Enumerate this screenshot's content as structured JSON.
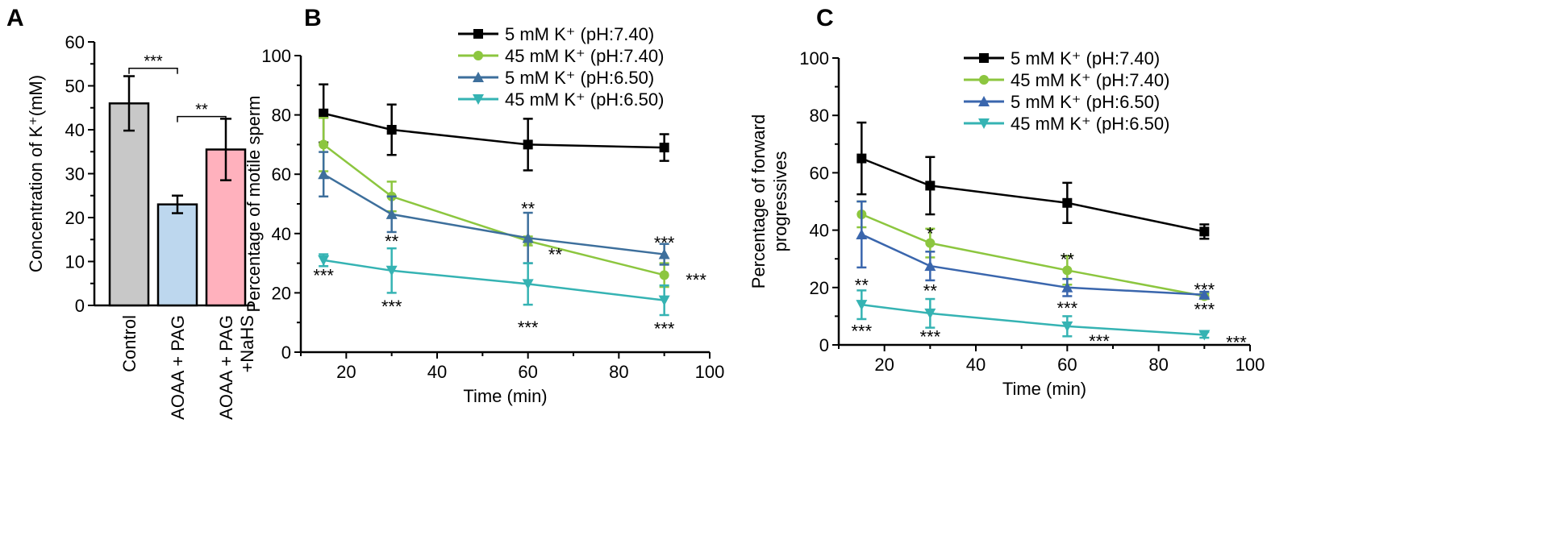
{
  "chart_data": [
    {
      "panel": "A",
      "type": "bar",
      "ylabel": "Concentration of K⁺(mM)",
      "ylim": [
        0,
        60
      ],
      "yticks": [
        0,
        10,
        20,
        30,
        40,
        50,
        60
      ],
      "categories": [
        [
          "Control"
        ],
        [
          "AOAA + PAG"
        ],
        [
          "AOAA + PAG",
          "+NaHS"
        ]
      ],
      "values": [
        46,
        23,
        35.5
      ],
      "errors": [
        6.2,
        2,
        7
      ],
      "colors": [
        "#c8c8c8",
        "#bdd7ee",
        "#ffb1bd"
      ],
      "significance": [
        {
          "from": 0,
          "to": 1,
          "label": "***",
          "y": 54
        },
        {
          "from": 1,
          "to": 2,
          "label": "**",
          "y": 43
        }
      ]
    },
    {
      "panel": "B",
      "type": "line",
      "xlabel": "Time (min)",
      "ylabel": "Percentage of motile sperm",
      "xlim": [
        10,
        100
      ],
      "xticks": [
        20,
        40,
        60,
        80,
        100
      ],
      "ylim": [
        0,
        100
      ],
      "yticks": [
        0,
        20,
        40,
        60,
        80,
        100
      ],
      "x": [
        15,
        30,
        60,
        90
      ],
      "legend_position": "top-right",
      "series": [
        {
          "name": "5 mM K⁺ (pH:7.40)",
          "color": "#000000",
          "marker": "square",
          "values": [
            80.5,
            75,
            70,
            69
          ],
          "errors": [
            9.8,
            8.5,
            8.7,
            4.5
          ]
        },
        {
          "name": "45 mM K⁺ (pH:7.40)",
          "color": "#8cc63f",
          "marker": "circle",
          "values": [
            70,
            52.5,
            37.5,
            26
          ],
          "errors": [
            9,
            5,
            1.5,
            4
          ]
        },
        {
          "name": "5 mM K⁺ (pH:6.50)",
          "color": "#3d6f9c",
          "marker": "triangle-up",
          "values": [
            60,
            46.5,
            38.5,
            33
          ],
          "errors": [
            7.5,
            6,
            8.5,
            3.5
          ]
        },
        {
          "name": "45 mM K⁺ (pH:6.50)",
          "color": "#35b3b3",
          "marker": "triangle-down",
          "values": [
            31,
            27.5,
            23,
            17.5
          ],
          "errors": [
            2,
            7.5,
            7,
            5
          ]
        }
      ],
      "annotations": [
        {
          "x": 15,
          "y": 26.5,
          "label": "***"
        },
        {
          "x": 30,
          "y": 38,
          "label": "**"
        },
        {
          "x": 30,
          "y": 16,
          "label": "***"
        },
        {
          "x": 60,
          "y": 49,
          "label": "**"
        },
        {
          "x": 66,
          "y": 33.5,
          "label": "**"
        },
        {
          "x": 60,
          "y": 9,
          "label": "***"
        },
        {
          "x": 90,
          "y": 37.5,
          "label": "***"
        },
        {
          "x": 97,
          "y": 25,
          "label": "***"
        },
        {
          "x": 90,
          "y": 8.5,
          "label": "***"
        }
      ]
    },
    {
      "panel": "C",
      "type": "line",
      "xlabel": "Time (min)",
      "ylabel": [
        "Percentage of forward",
        "progressives"
      ],
      "xlim": [
        10,
        100
      ],
      "xticks": [
        20,
        40,
        60,
        80,
        100
      ],
      "ylim": [
        0,
        100
      ],
      "yticks": [
        0,
        20,
        40,
        60,
        80,
        100
      ],
      "x": [
        15,
        30,
        60,
        90
      ],
      "legend_position": "top-right",
      "series": [
        {
          "name": "5 mM K⁺ (pH:7.40)",
          "color": "#000000",
          "marker": "square",
          "values": [
            65,
            55.5,
            49.5,
            39.5
          ],
          "errors": [
            12.5,
            10,
            7,
            2.5
          ]
        },
        {
          "name": "45 mM K⁺ (pH:7.40)",
          "color": "#8cc63f",
          "marker": "circle",
          "values": [
            45.5,
            35.5,
            26,
            17
          ],
          "errors": [
            4.5,
            5,
            5,
            1
          ]
        },
        {
          "name": "5 mM K⁺ (pH:6.50)",
          "color": "#3a66ad",
          "marker": "triangle-up",
          "values": [
            38.5,
            27.5,
            20,
            17.5
          ],
          "errors": [
            11.5,
            5,
            3,
            1
          ]
        },
        {
          "name": "45 mM K⁺ (pH:6.50)",
          "color": "#35b3b3",
          "marker": "triangle-down",
          "values": [
            14,
            11,
            6.5,
            3.5
          ],
          "errors": [
            5,
            5,
            3.5,
            1
          ]
        }
      ],
      "annotations": [
        {
          "x": 15,
          "y": 21.5,
          "label": "**"
        },
        {
          "x": 15,
          "y": 5.5,
          "label": "***"
        },
        {
          "x": 30,
          "y": 39.5,
          "label": "*"
        },
        {
          "x": 30,
          "y": 19.5,
          "label": "**"
        },
        {
          "x": 30,
          "y": 3.5,
          "label": "***"
        },
        {
          "x": 60,
          "y": 30.5,
          "label": "**"
        },
        {
          "x": 60,
          "y": 13.5,
          "label": "***"
        },
        {
          "x": 67,
          "y": 2,
          "label": "***"
        },
        {
          "x": 90,
          "y": 20,
          "label": "***"
        },
        {
          "x": 90,
          "y": 13,
          "label": "***"
        },
        {
          "x": 97,
          "y": 1.5,
          "label": "***"
        }
      ]
    }
  ]
}
